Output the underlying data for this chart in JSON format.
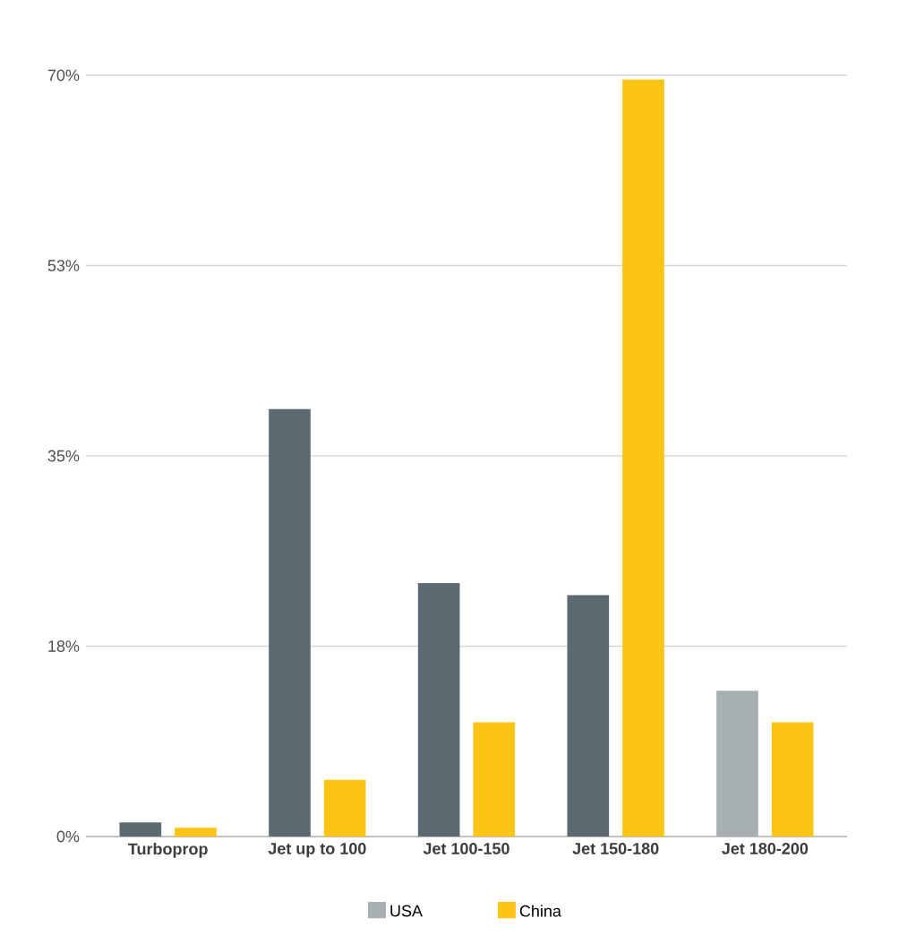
{
  "chart_data": {
    "type": "bar",
    "categories": [
      "Turboprop",
      "Jet up to 100",
      "Jet 100-150",
      "Jet 150-180",
      "Jet 180-200"
    ],
    "series": [
      {
        "name": "USA",
        "color": "#a8afb2",
        "colors": [
          "#5c6a72",
          "#5c6a72",
          "#5c6a72",
          "#5c6a72",
          "#a8afb2"
        ],
        "values": [
          1.3,
          39.3,
          23.3,
          22.2,
          13.4
        ]
      },
      {
        "name": "China",
        "color": "#fcc515",
        "values": [
          0.8,
          5.2,
          10.5,
          69.6,
          10.5
        ]
      }
    ],
    "ylim": [
      0,
      70
    ],
    "yticks": [
      {
        "value": 0,
        "label": "0%"
      },
      {
        "value": 17.5,
        "label": "18%"
      },
      {
        "value": 35,
        "label": "35%"
      },
      {
        "value": 52.5,
        "label": "53%"
      },
      {
        "value": 70,
        "label": "70%"
      }
    ],
    "grid": "y",
    "legend": "bottom"
  }
}
